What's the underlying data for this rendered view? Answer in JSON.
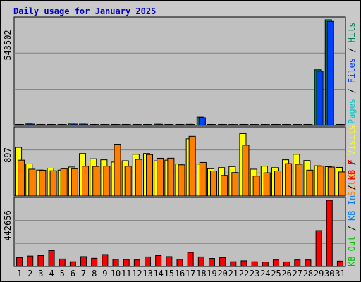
{
  "title": "Daily usage for January 2025",
  "colors": {
    "panel_bg": "#c0c0c0",
    "hits": "#00805c",
    "files": "#0040ff",
    "pages": "#00c8c8",
    "visits": "#ffff00",
    "sites": "#ff8000",
    "kbin": "#0080ff",
    "kbout": "#00c000",
    "kbf": "#ff0000",
    "weekday_label": "#000000",
    "weekend_label": "#00805c"
  },
  "chart_data": [
    {
      "type": "bar",
      "panel": "top",
      "y_max_label": "543502",
      "legend": [
        {
          "text": "Hits",
          "color": "#00805c"
        },
        {
          "text": "Files",
          "color": "#0040ff"
        },
        {
          "text": "Pages",
          "color": "#00c8c8"
        }
      ],
      "categories": [
        "1",
        "2",
        "3",
        "4",
        "5",
        "6",
        "7",
        "8",
        "9",
        "10",
        "11",
        "12",
        "13",
        "14",
        "15",
        "16",
        "17",
        "18",
        "19",
        "20",
        "21",
        "22",
        "23",
        "24",
        "25",
        "26",
        "27",
        "28",
        "29",
        "30",
        "31"
      ],
      "ylim": [
        0,
        543502
      ],
      "series": [
        {
          "name": "Hits",
          "values": [
            5500,
            8000,
            5500,
            5500,
            5500,
            7500,
            7000,
            5500,
            5500,
            5500,
            5500,
            5500,
            5500,
            6500,
            5500,
            5500,
            6000,
            43000,
            5500,
            5500,
            5500,
            5500,
            5500,
            5500,
            5500,
            5500,
            5500,
            5500,
            287000,
            543502,
            5500
          ]
        },
        {
          "name": "Files",
          "values": [
            5000,
            7000,
            5000,
            5000,
            5000,
            7000,
            6500,
            5000,
            5000,
            5000,
            5000,
            5000,
            5000,
            6000,
            5000,
            5000,
            5500,
            40000,
            5000,
            5000,
            5000,
            5000,
            5000,
            5000,
            5000,
            5000,
            5000,
            5000,
            280000,
            535000,
            5000
          ]
        },
        {
          "name": "Pages",
          "values": [
            3000,
            3000,
            3000,
            3000,
            3000,
            3000,
            3000,
            3000,
            3000,
            3000,
            3000,
            3000,
            3000,
            3000,
            3000,
            3000,
            3000,
            3000,
            3000,
            3000,
            3000,
            3000,
            3000,
            3000,
            3000,
            3000,
            3000,
            3000,
            3000,
            3000,
            3000
          ]
        }
      ]
    },
    {
      "type": "bar",
      "panel": "middle",
      "y_max_label": "897",
      "legend": [
        {
          "text": "Visits",
          "color": "#ffff00"
        },
        {
          "text": "Sites",
          "color": "#ff8000"
        }
      ],
      "categories": [
        "1",
        "2",
        "3",
        "4",
        "5",
        "6",
        "7",
        "8",
        "9",
        "10",
        "11",
        "12",
        "13",
        "14",
        "15",
        "16",
        "17",
        "18",
        "19",
        "20",
        "21",
        "22",
        "23",
        "24",
        "25",
        "26",
        "27",
        "28",
        "29",
        "30",
        "31"
      ],
      "ylim": [
        0,
        897
      ],
      "series": [
        {
          "name": "Visits",
          "values": [
            658,
            434,
            351,
            377,
            351,
            392,
            575,
            504,
            490,
            459,
            477,
            565,
            575,
            476,
            485,
            433,
            774,
            432,
            369,
            384,
            398,
            845,
            363,
            404,
            383,
            490,
            565,
            480,
            409,
            396,
            387
          ]
        },
        {
          "name": "Sites",
          "values": [
            485,
            363,
            349,
            341,
            369,
            369,
            403,
            400,
            404,
            701,
            403,
            496,
            561,
            511,
            512,
            422,
            808,
            454,
            339,
            279,
            318,
            688,
            270,
            314,
            339,
            438,
            430,
            350,
            404,
            391,
            325
          ]
        }
      ]
    },
    {
      "type": "bar",
      "panel": "bottom",
      "y_max_label": "442656",
      "legend": [
        {
          "text": "KB F",
          "color": "#ff0000"
        },
        {
          "text": "KB In",
          "color": "#0080ff"
        },
        {
          "text": "KB Out",
          "color": "#00c000"
        }
      ],
      "categories": [
        "1",
        "2",
        "3",
        "4",
        "5",
        "6",
        "7",
        "8",
        "9",
        "10",
        "11",
        "12",
        "13",
        "14",
        "15",
        "16",
        "17",
        "18",
        "19",
        "20",
        "21",
        "22",
        "23",
        "24",
        "25",
        "26",
        "27",
        "28",
        "29",
        "30",
        "31"
      ],
      "ylim": [
        0,
        442656
      ],
      "series": [
        {
          "name": "KB F",
          "values": [
            60000,
            70000,
            73000,
            106000,
            50000,
            32000,
            66000,
            55000,
            80000,
            48000,
            47000,
            44000,
            64000,
            73000,
            66000,
            48000,
            94000,
            64000,
            54000,
            60000,
            32000,
            38000,
            32000,
            30000,
            44000,
            31000,
            44000,
            44000,
            240000,
            442656,
            36000
          ]
        }
      ]
    }
  ],
  "x_axis": {
    "labels": [
      "1",
      "2",
      "3",
      "4",
      "5",
      "6",
      "7",
      "8",
      "9",
      "10",
      "11",
      "12",
      "13",
      "14",
      "15",
      "16",
      "17",
      "18",
      "19",
      "20",
      "21",
      "22",
      "23",
      "24",
      "25",
      "26",
      "27",
      "28",
      "29",
      "30",
      "31"
    ],
    "weekend": [
      "4",
      "5",
      "11",
      "12",
      "18",
      "19",
      "25",
      "26"
    ]
  }
}
